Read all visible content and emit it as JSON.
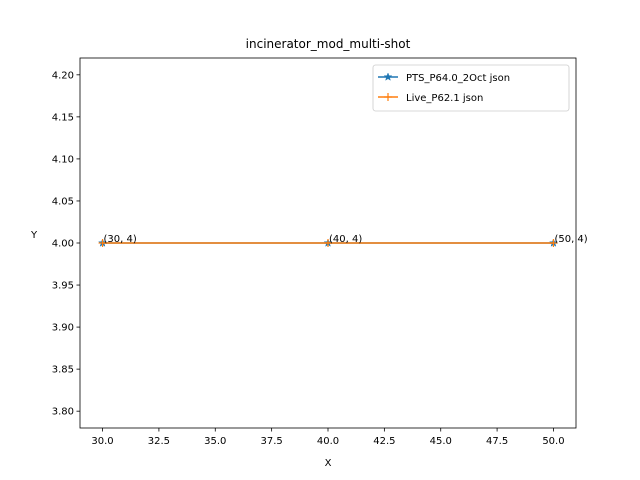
{
  "chart_data": {
    "type": "line",
    "title": "incinerator_mod_multi-shot",
    "xlabel": "X",
    "ylabel": "Y",
    "xlim": [
      29.0,
      51.0
    ],
    "ylim": [
      3.78,
      4.22
    ],
    "xticks": [
      30.0,
      32.5,
      35.0,
      37.5,
      40.0,
      42.5,
      45.0,
      47.5,
      50.0
    ],
    "xtick_labels": [
      "30.0",
      "32.5",
      "35.0",
      "37.5",
      "40.0",
      "42.5",
      "45.0",
      "47.5",
      "50.0"
    ],
    "yticks": [
      3.8,
      3.85,
      3.9,
      3.95,
      4.0,
      4.05,
      4.1,
      4.15,
      4.2
    ],
    "ytick_labels": [
      "3.80",
      "3.85",
      "3.90",
      "3.95",
      "4.00",
      "4.05",
      "4.10",
      "4.15",
      "4.20"
    ],
    "grid": false,
    "legend_position": "top-right",
    "series": [
      {
        "name": "PTS_P64.0_2Oct json",
        "x": [
          30,
          40,
          50
        ],
        "y": [
          4,
          4,
          4
        ],
        "color": "#1f77b4",
        "marker": "star"
      },
      {
        "name": "Live_P62.1 json",
        "x": [
          30,
          40,
          50
        ],
        "y": [
          4,
          4,
          4
        ],
        "color": "#ff7f0e",
        "marker": "plus"
      }
    ],
    "annotations": [
      {
        "x": 30,
        "y": 4,
        "text": "(30, 4)"
      },
      {
        "x": 40,
        "y": 4,
        "text": "(40, 4)"
      },
      {
        "x": 50,
        "y": 4,
        "text": "(50, 4)"
      }
    ]
  }
}
